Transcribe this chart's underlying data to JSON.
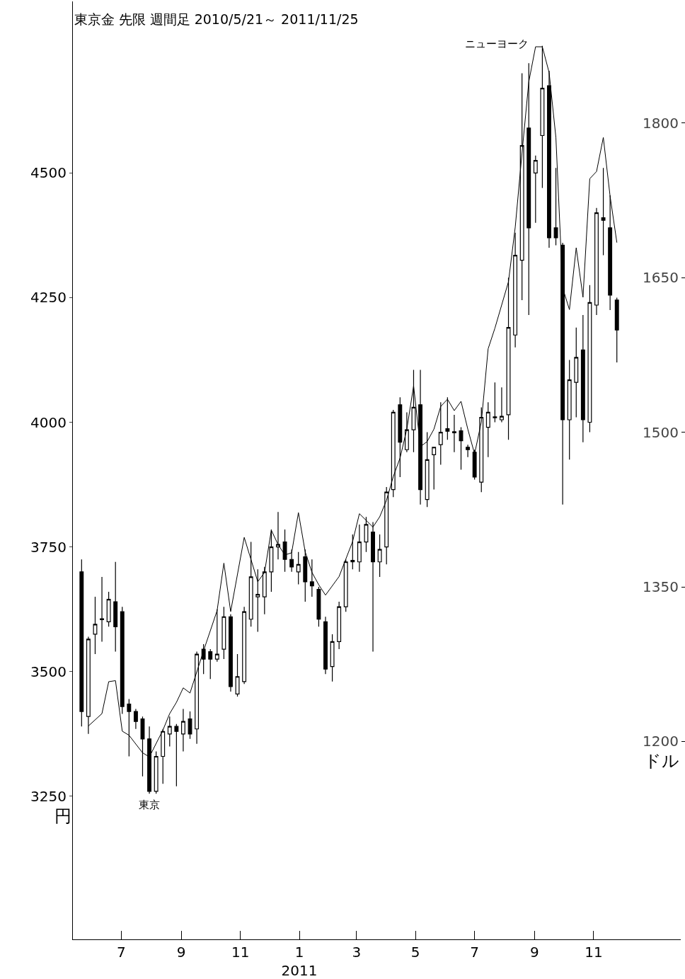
{
  "chart_data": {
    "type": "candlestick",
    "title": "東京金 先限 週間足 2010/5/21～ 2011/11/25",
    "ylabel": "円",
    "y2label": "ドル",
    "x": [
      "2010-05-21",
      "2010-05-28",
      "2010-06-04",
      "2010-06-11",
      "2010-06-18",
      "2010-06-25",
      "2010-07-02",
      "2010-07-09",
      "2010-07-16",
      "2010-07-23",
      "2010-07-30",
      "2010-08-06",
      "2010-08-13",
      "2010-08-20",
      "2010-08-27",
      "2010-09-03",
      "2010-09-10",
      "2010-09-17",
      "2010-09-24",
      "2010-10-01",
      "2010-10-08",
      "2010-10-15",
      "2010-10-22",
      "2010-10-29",
      "2010-11-05",
      "2010-11-12",
      "2010-11-19",
      "2010-11-26",
      "2010-12-03",
      "2010-12-10",
      "2010-12-17",
      "2010-12-24",
      "2010-12-31",
      "2011-01-07",
      "2011-01-14",
      "2011-01-21",
      "2011-01-28",
      "2011-02-04",
      "2011-02-11",
      "2011-02-18",
      "2011-02-25",
      "2011-03-04",
      "2011-03-11",
      "2011-03-18",
      "2011-03-25",
      "2011-04-01",
      "2011-04-08",
      "2011-04-15",
      "2011-04-22",
      "2011-04-29",
      "2011-05-06",
      "2011-05-13",
      "2011-05-20",
      "2011-05-27",
      "2011-06-03",
      "2011-06-10",
      "2011-06-17",
      "2011-06-24",
      "2011-07-01",
      "2011-07-08",
      "2011-07-15",
      "2011-07-22",
      "2011-07-29",
      "2011-08-05",
      "2011-08-12",
      "2011-08-19",
      "2011-08-26",
      "2011-09-02",
      "2011-09-09",
      "2011-09-16",
      "2011-09-23",
      "2011-09-30",
      "2011-10-07",
      "2011-10-14",
      "2011-10-21",
      "2011-10-28",
      "2011-11-04",
      "2011-11-11",
      "2011-11-18",
      "2011-11-25"
    ],
    "series": [
      {
        "name": "東京",
        "color": "#000000",
        "ohlc": [
          [
            3700,
            3725,
            3390,
            3420
          ],
          [
            3410,
            3570,
            3375,
            3565
          ],
          [
            3575,
            3650,
            3535,
            3595
          ],
          [
            3604,
            3690,
            3560,
            3606
          ],
          [
            3600,
            3660,
            3590,
            3645
          ],
          [
            3640,
            3720,
            3540,
            3590
          ],
          [
            3620,
            3630,
            3415,
            3430
          ],
          [
            3435,
            3445,
            3330,
            3420
          ],
          [
            3420,
            3425,
            3385,
            3400
          ],
          [
            3405,
            3410,
            3290,
            3365
          ],
          [
            3365,
            3390,
            3255,
            3260
          ],
          [
            3260,
            3340,
            3255,
            3330
          ],
          [
            3330,
            3385,
            3275,
            3380
          ],
          [
            3375,
            3410,
            3350,
            3390
          ],
          [
            3390,
            3395,
            3270,
            3380
          ],
          [
            3375,
            3425,
            3340,
            3400
          ],
          [
            3405,
            3420,
            3365,
            3375
          ],
          [
            3385,
            3540,
            3355,
            3535
          ],
          [
            3545,
            3555,
            3495,
            3525
          ],
          [
            3540,
            3545,
            3485,
            3525
          ],
          [
            3525,
            3625,
            3520,
            3535
          ],
          [
            3545,
            3630,
            3525,
            3610
          ],
          [
            3610,
            3615,
            3460,
            3470
          ],
          [
            3455,
            3535,
            3450,
            3490
          ],
          [
            3480,
            3630,
            3475,
            3620
          ],
          [
            3605,
            3760,
            3590,
            3690
          ],
          [
            3650,
            3705,
            3580,
            3655
          ],
          [
            3650,
            3710,
            3615,
            3700
          ],
          [
            3700,
            3785,
            3660,
            3750
          ],
          [
            3750,
            3820,
            3725,
            3755
          ],
          [
            3760,
            3785,
            3700,
            3725
          ],
          [
            3725,
            3745,
            3700,
            3710
          ],
          [
            3700,
            3740,
            3675,
            3715
          ],
          [
            3730,
            3745,
            3640,
            3680
          ],
          [
            3680,
            3725,
            3650,
            3672
          ],
          [
            3665,
            3670,
            3590,
            3605
          ],
          [
            3600,
            3610,
            3495,
            3505
          ],
          [
            3510,
            3575,
            3480,
            3560
          ],
          [
            3560,
            3640,
            3545,
            3630
          ],
          [
            3630,
            3725,
            3620,
            3720
          ],
          [
            3720,
            3775,
            3705,
            3723
          ],
          [
            3720,
            3795,
            3700,
            3760
          ],
          [
            3760,
            3810,
            3740,
            3795
          ],
          [
            3780,
            3800,
            3540,
            3720
          ],
          [
            3720,
            3775,
            3690,
            3745
          ],
          [
            3750,
            3870,
            3715,
            3860
          ],
          [
            3865,
            4025,
            3850,
            4020
          ],
          [
            4035,
            4050,
            3890,
            3960
          ],
          [
            3945,
            4020,
            3940,
            3985
          ],
          [
            3985,
            4105,
            3940,
            4030
          ],
          [
            4035,
            4105,
            3835,
            3865
          ],
          [
            3845,
            3980,
            3830,
            3925
          ],
          [
            3935,
            3950,
            3865,
            3950
          ],
          [
            3955,
            4040,
            3915,
            3980
          ],
          [
            3987,
            4050,
            3965,
            3982
          ],
          [
            3981,
            4015,
            3940,
            3979
          ],
          [
            3983,
            3990,
            3905,
            3963
          ],
          [
            3950,
            3955,
            3930,
            3945
          ],
          [
            3940,
            3945,
            3885,
            3890
          ],
          [
            3880,
            4030,
            3860,
            4010
          ],
          [
            3990,
            4040,
            3930,
            4020
          ],
          [
            4009,
            4080,
            4000,
            4011
          ],
          [
            4005,
            4070,
            4000,
            4012
          ],
          [
            4015,
            4290,
            3965,
            4190
          ],
          [
            4175,
            4380,
            4150,
            4335
          ],
          [
            4325,
            4700,
            4245,
            4555
          ],
          [
            4590,
            4720,
            4215,
            4390
          ],
          [
            4500,
            4535,
            4400,
            4525
          ],
          [
            4575,
            4755,
            4470,
            4670
          ],
          [
            4675,
            4705,
            4350,
            4370
          ],
          [
            4390,
            4510,
            4355,
            4370
          ],
          [
            4355,
            4360,
            3835,
            4005
          ],
          [
            4005,
            4125,
            3925,
            4085
          ],
          [
            4080,
            4190,
            4010,
            4130
          ],
          [
            4145,
            4215,
            3960,
            4005
          ],
          [
            4000,
            4275,
            3980,
            4240
          ],
          [
            4235,
            4430,
            4215,
            4420
          ],
          [
            4410,
            4510,
            4335,
            4405
          ],
          [
            4390,
            4455,
            4225,
            4255
          ],
          [
            4245,
            4250,
            4120,
            4185
          ]
        ]
      },
      {
        "name": "ニューヨーク",
        "type": "line",
        "axis": "y2",
        "color": "#000000",
        "x": [
          "2010-05-28",
          "2010-06-11",
          "2010-06-18",
          "2010-06-25",
          "2010-07-02",
          "2010-07-09",
          "2010-07-23",
          "2010-07-30",
          "2010-08-13",
          "2010-08-20",
          "2010-08-27",
          "2010-09-03",
          "2010-09-10",
          "2010-09-24",
          "2010-10-08",
          "2010-10-15",
          "2010-10-22",
          "2010-11-05",
          "2010-11-19",
          "2010-11-26",
          "2010-12-03",
          "2010-12-10",
          "2010-12-17",
          "2010-12-24",
          "2010-12-31",
          "2011-01-07",
          "2011-01-14",
          "2011-01-21",
          "2011-01-28",
          "2011-02-11",
          "2011-02-25",
          "2011-03-04",
          "2011-03-18",
          "2011-03-25",
          "2011-04-01",
          "2011-04-08",
          "2011-04-15",
          "2011-04-22",
          "2011-04-29",
          "2011-05-06",
          "2011-05-13",
          "2011-05-20",
          "2011-05-27",
          "2011-06-03",
          "2011-06-10",
          "2011-06-17",
          "2011-06-24",
          "2011-07-01",
          "2011-07-08",
          "2011-07-15",
          "2011-07-22",
          "2011-08-05",
          "2011-08-12",
          "2011-08-19",
          "2011-08-26",
          "2011-09-02",
          "2011-09-09",
          "2011-09-16",
          "2011-09-23",
          "2011-09-30",
          "2011-10-07",
          "2011-10-14",
          "2011-10-21",
          "2011-10-28",
          "2011-11-04",
          "2011-11-11",
          "2011-11-18",
          "2011-11-25"
        ],
        "values": [
          1215,
          1227,
          1258,
          1259,
          1210,
          1206,
          1189,
          1185,
          1211,
          1227,
          1238,
          1252,
          1247,
          1288,
          1327,
          1373,
          1326,
          1398,
          1355,
          1364,
          1405,
          1391,
          1381,
          1383,
          1422,
          1384,
          1364,
          1352,
          1342,
          1360,
          1394,
          1421,
          1408,
          1418,
          1434,
          1457,
          1475,
          1503,
          1545,
          1486,
          1491,
          1503,
          1525,
          1532,
          1521,
          1530,
          1503,
          1479,
          1510,
          1581,
          1601,
          1646,
          1699,
          1771,
          1840,
          1874,
          1874,
          1849,
          1786,
          1640,
          1619,
          1679,
          1631,
          1746,
          1753,
          1786,
          1729,
          1684
        ]
      }
    ],
    "xlim": [
      "2010-05-12",
      "2012-01-30"
    ],
    "xticks": [
      {
        "value": "2010-07-01",
        "label": "7"
      },
      {
        "value": "2010-09-01",
        "label": "9"
      },
      {
        "value": "2010-11-01",
        "label": "11"
      },
      {
        "value": "2011-01-01",
        "label": "1\n2011"
      },
      {
        "value": "2011-03-01",
        "label": "3"
      },
      {
        "value": "2011-05-01",
        "label": "5"
      },
      {
        "value": "2011-07-01",
        "label": "7"
      },
      {
        "value": "2011-09-01",
        "label": "9"
      },
      {
        "value": "2011-11-01",
        "label": "11"
      }
    ],
    "ylim": [
      2963,
      4844
    ],
    "yticks": [
      3250,
      3500,
      3750,
      4000,
      4250,
      4500
    ],
    "y2lim": [
      1008,
      1918
    ],
    "y2ticks": [
      1200,
      1350,
      1500,
      1650,
      1800
    ],
    "grid": false,
    "legend": false,
    "marker": "none",
    "line_style": "solid"
  }
}
